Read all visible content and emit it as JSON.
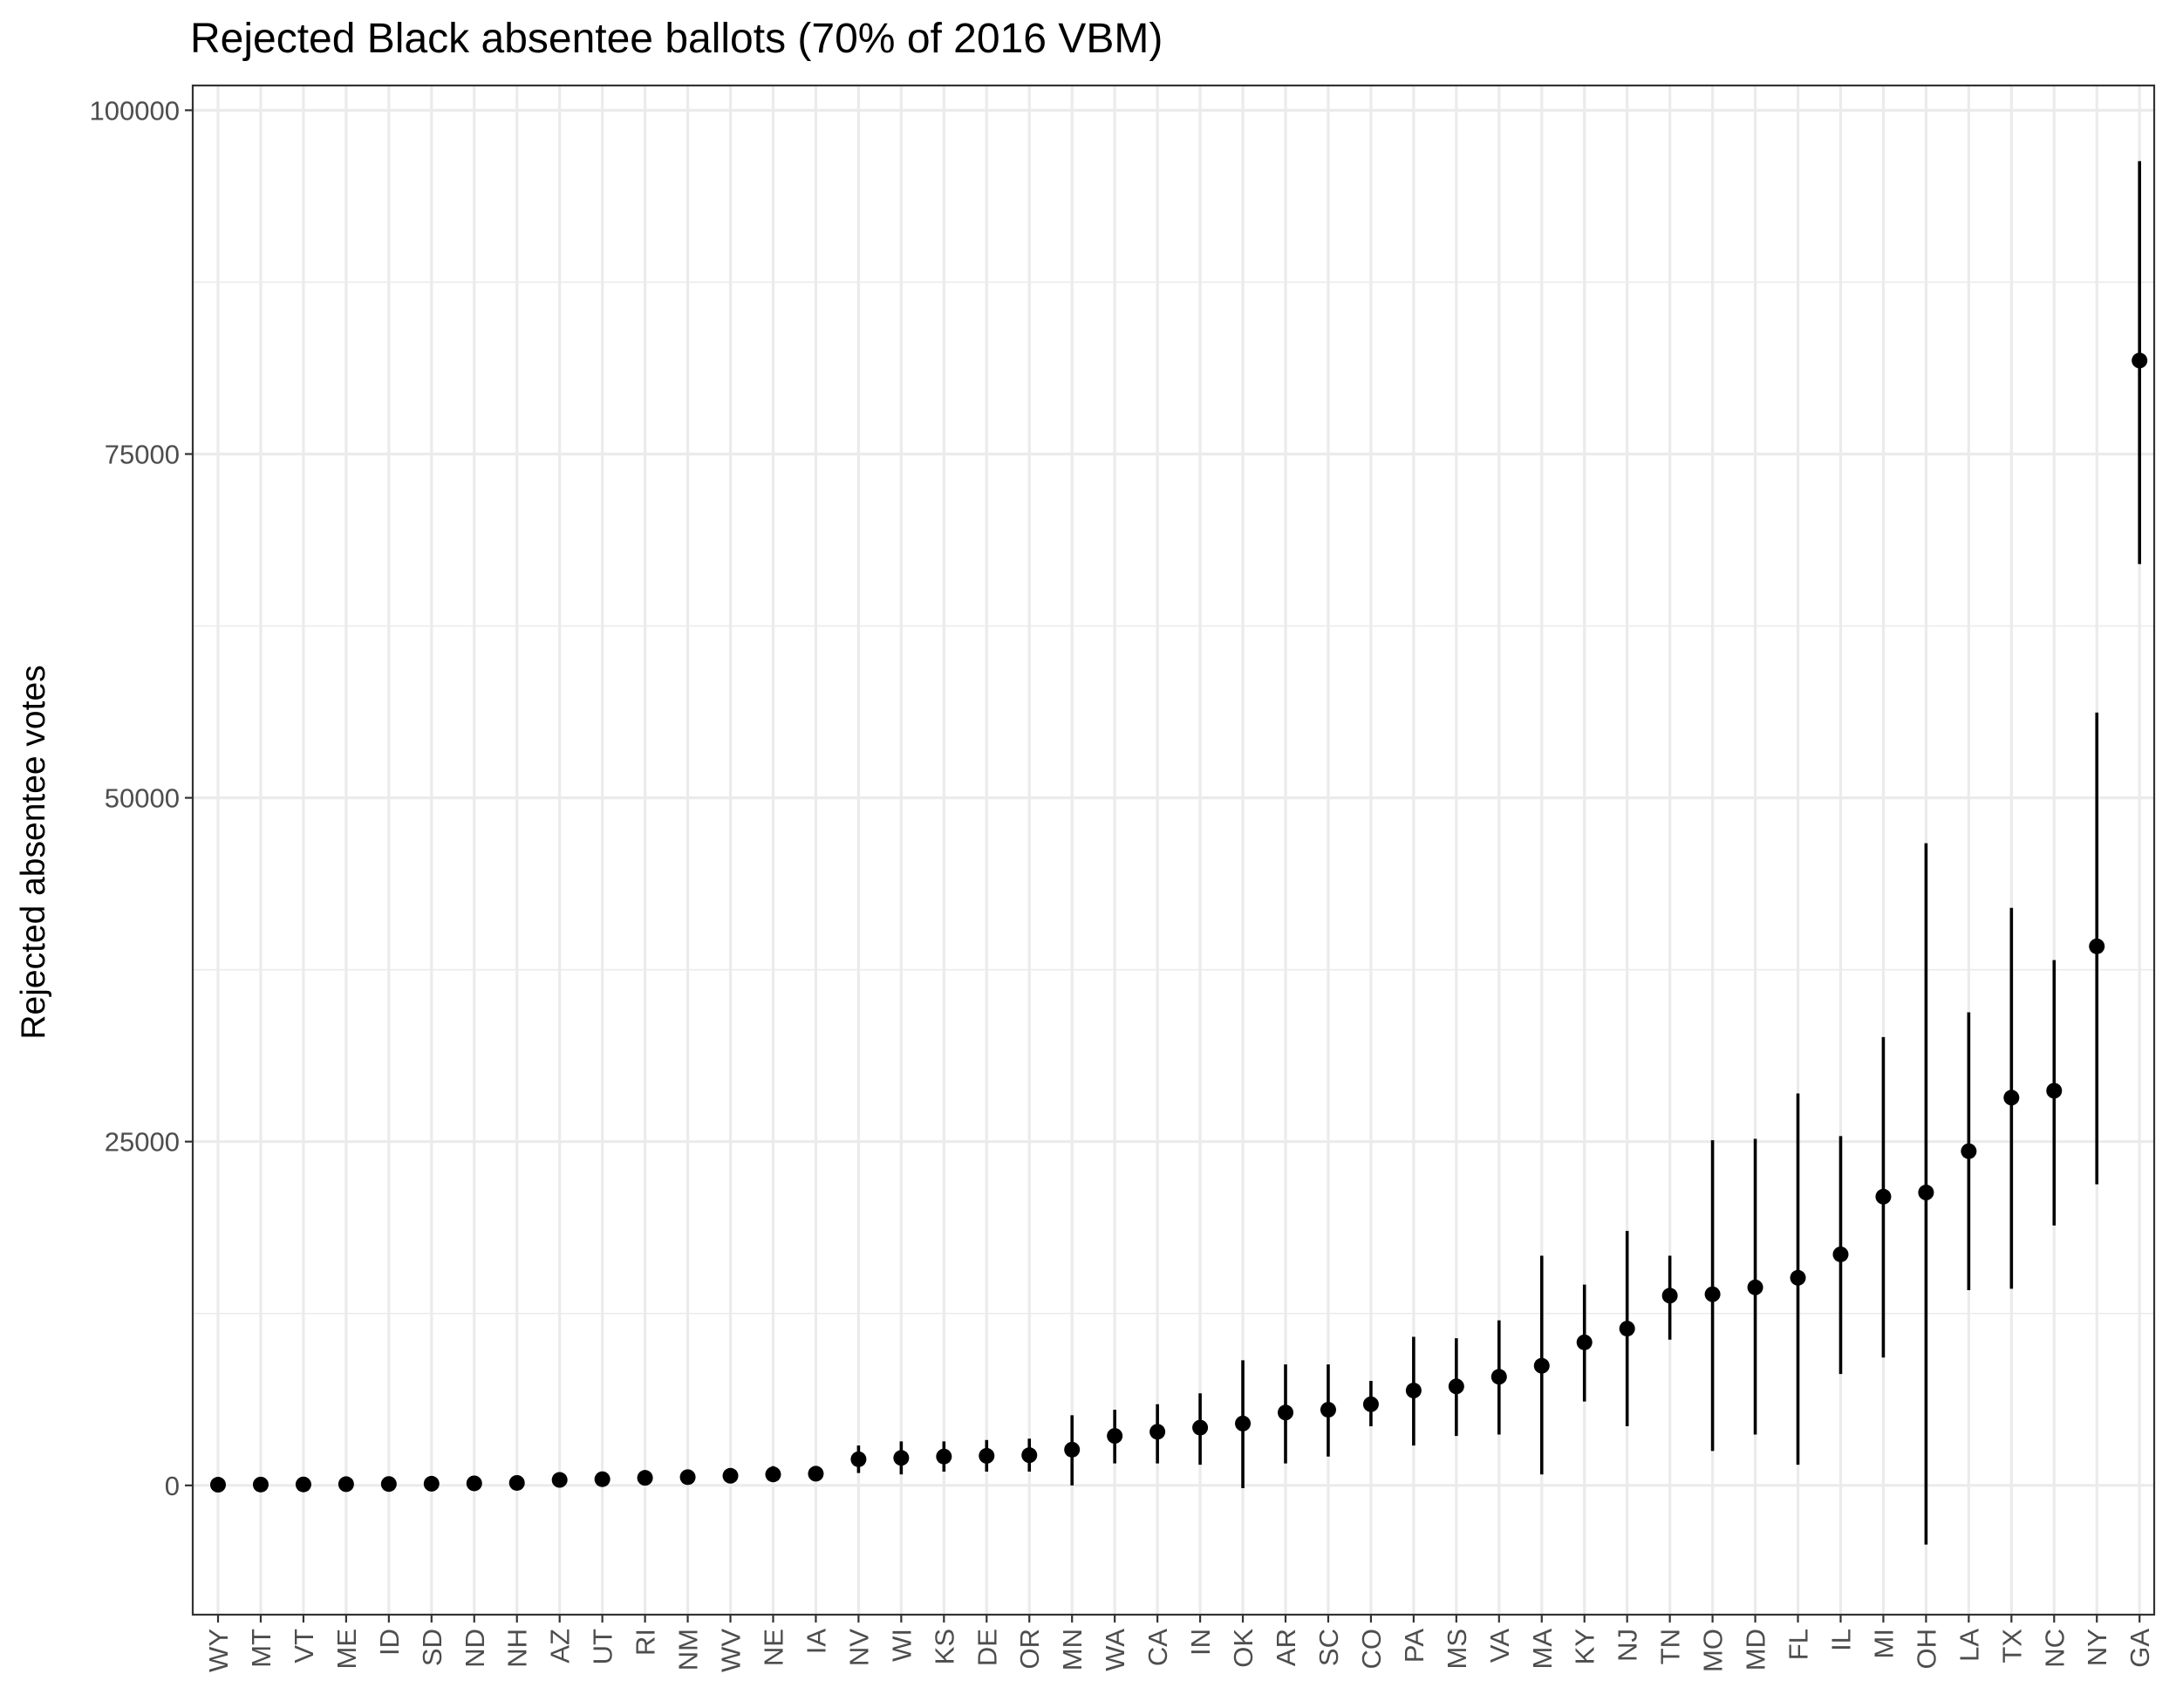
{
  "chart_data": {
    "type": "pointrange",
    "title": "Rejected Black absentee ballots (70% of 2016 VBM)",
    "xlabel": "",
    "ylabel": "Rejected absentee votes",
    "ylim": [
      -9400,
      101800
    ],
    "yticks": [
      0,
      25000,
      50000,
      75000,
      100000
    ],
    "ytick_labels": [
      "0",
      "25000",
      "50000",
      "75000",
      "100000"
    ],
    "grid": true,
    "legend": "none",
    "categories": [
      "WY",
      "MT",
      "VT",
      "ME",
      "ID",
      "SD",
      "ND",
      "NH",
      "AZ",
      "UT",
      "RI",
      "NM",
      "WV",
      "NE",
      "IA",
      "NV",
      "WI",
      "KS",
      "DE",
      "OR",
      "MN",
      "WA",
      "CA",
      "IN",
      "OK",
      "AR",
      "SC",
      "CO",
      "PA",
      "MS",
      "VA",
      "MA",
      "KY",
      "NJ",
      "TN",
      "MO",
      "MD",
      "FL",
      "IL",
      "MI",
      "OH",
      "LA",
      "TX",
      "NC",
      "NY",
      "GA"
    ],
    "values": [
      50,
      60,
      70,
      90,
      100,
      120,
      150,
      180,
      400,
      450,
      550,
      600,
      700,
      800,
      850,
      1900,
      2000,
      2100,
      2150,
      2200,
      2600,
      3600,
      3900,
      4200,
      4500,
      5300,
      5500,
      5900,
      6900,
      7200,
      7900,
      8700,
      10400,
      11400,
      13800,
      13900,
      14400,
      15100,
      16800,
      21000,
      21300,
      24300,
      28200,
      28700,
      39200,
      81800
    ],
    "lower": [
      0,
      0,
      0,
      0,
      0,
      0,
      0,
      0,
      200,
      250,
      250,
      350,
      450,
      300,
      550,
      900,
      800,
      1000,
      1000,
      1000,
      0,
      1600,
      1600,
      1500,
      -200,
      1600,
      2100,
      4300,
      2900,
      3600,
      3700,
      800,
      6100,
      4300,
      10600,
      2500,
      3700,
      1500,
      8100,
      9300,
      -4300,
      14200,
      14300,
      18900,
      21900,
      67000
    ],
    "upper": [
      100,
      120,
      140,
      180,
      200,
      240,
      300,
      360,
      600,
      650,
      850,
      850,
      950,
      1400,
      1150,
      2900,
      3200,
      3200,
      3300,
      3400,
      5100,
      5500,
      5900,
      6700,
      9100,
      8800,
      8800,
      7600,
      10800,
      10700,
      12000,
      16700,
      14600,
      18500,
      16700,
      25100,
      25200,
      28500,
      25400,
      32600,
      46700,
      34400,
      42000,
      38200,
      56200,
      96300
    ],
    "colors": {
      "point": "#000000",
      "grid": "#ebebeb",
      "panel_border": "#333333",
      "tick_text": "#4d4d4d"
    }
  }
}
